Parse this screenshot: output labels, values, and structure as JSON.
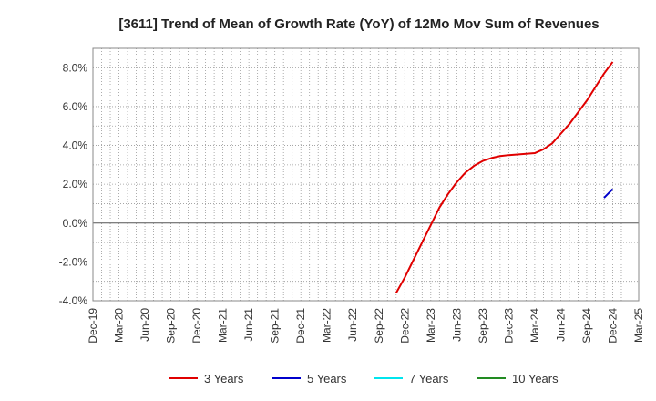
{
  "chart_data": {
    "type": "line",
    "title": "[3611]  Trend of Mean of Growth Rate (YoY) of 12Mo Mov Sum of Revenues",
    "xlabel": "",
    "ylabel": "",
    "x_ticks": [
      "Dec-19",
      "Mar-20",
      "Jun-20",
      "Sep-20",
      "Dec-20",
      "Mar-21",
      "Jun-21",
      "Sep-21",
      "Dec-21",
      "Mar-22",
      "Jun-22",
      "Sep-22",
      "Dec-22",
      "Mar-23",
      "Jun-23",
      "Sep-23",
      "Dec-23",
      "Mar-24",
      "Jun-24",
      "Sep-24",
      "Dec-24",
      "Mar-25"
    ],
    "y_ticks": [
      "-4.0%",
      "-2.0%",
      "0.0%",
      "2.0%",
      "4.0%",
      "6.0%",
      "8.0%"
    ],
    "ylim": [
      -4.0,
      9.0
    ],
    "y_unit": "%",
    "grid": true,
    "legend_position": "bottom",
    "series": [
      {
        "name": "3 Years",
        "color": "#e00000",
        "x": [
          "Nov-22",
          "Dec-22",
          "Jan-23",
          "Feb-23",
          "Mar-23",
          "Apr-23",
          "May-23",
          "Jun-23",
          "Jul-23",
          "Aug-23",
          "Sep-23",
          "Oct-23",
          "Nov-23",
          "Dec-23",
          "Jan-24",
          "Feb-24",
          "Mar-24",
          "Apr-24",
          "May-24",
          "Jun-24",
          "Jul-24",
          "Aug-24",
          "Sep-24",
          "Oct-24",
          "Nov-24",
          "Dec-24"
        ],
        "values": [
          -3.6,
          -2.8,
          -1.9,
          -1.0,
          -0.1,
          0.8,
          1.5,
          2.1,
          2.6,
          2.95,
          3.2,
          3.35,
          3.45,
          3.5,
          3.53,
          3.57,
          3.6,
          3.8,
          4.1,
          4.6,
          5.1,
          5.7,
          6.3,
          7.0,
          7.7,
          8.3
        ]
      },
      {
        "name": "5 Years",
        "color": "#0000cc",
        "x": [
          "Nov-24",
          "Dec-24"
        ],
        "values": [
          1.3,
          1.75
        ]
      },
      {
        "name": "7 Years",
        "color": "#00e5ee",
        "x": [],
        "values": []
      },
      {
        "name": "10 Years",
        "color": "#228b22",
        "x": [],
        "values": []
      }
    ]
  }
}
